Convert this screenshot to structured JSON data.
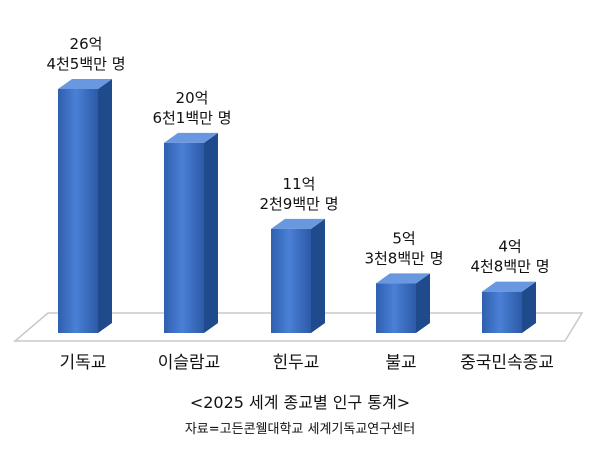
{
  "chart_data": {
    "type": "bar3d",
    "title": "<2025 세계 종교별 인구 통계>",
    "source": "자료=고든콘웰대학교 세계기독교연구센터",
    "categories": [
      "기독교",
      "이슬람교",
      "힌두교",
      "불교",
      "중국민속종교"
    ],
    "values": [
      2645000000,
      2061000000,
      1129000000,
      538000000,
      448000000
    ],
    "value_labels": [
      [
        "26억",
        "4천5백만 명"
      ],
      [
        "20억",
        "6천1백만 명"
      ],
      [
        "11억",
        "2천9백만 명"
      ],
      [
        "5억",
        "3천8백만 명"
      ],
      [
        "4억",
        "4천8백만 명"
      ]
    ],
    "color": "#3a6fc4"
  }
}
